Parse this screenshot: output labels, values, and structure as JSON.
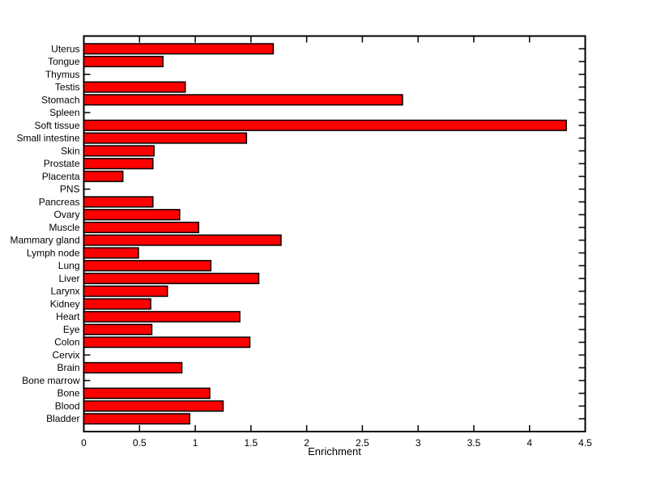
{
  "figure": {
    "background": "#ffffff"
  },
  "chart_data": {
    "type": "bar",
    "orientation": "horizontal",
    "title": "",
    "xlabel": "Enrichment",
    "ylabel": "",
    "xlim": [
      0,
      4.5
    ],
    "xticks": [
      0,
      0.5,
      1,
      1.5,
      2,
      2.5,
      3,
      3.5,
      4,
      4.5
    ],
    "xtick_labels": [
      "0",
      "0.5",
      "1",
      "1.5",
      "2",
      "2.5",
      "3",
      "3.5",
      "4",
      "4.5"
    ],
    "grid": false,
    "legend": "none",
    "category_order": "top_to_bottom",
    "categories": [
      "Uterus",
      "Tongue",
      "Thymus",
      "Testis",
      "Stomach",
      "Spleen",
      "Soft tissue",
      "Small intestine",
      "Skin",
      "Prostate",
      "Placenta",
      "PNS",
      "Pancreas",
      "Ovary",
      "Muscle",
      "Mammary gland",
      "Lymph node",
      "Lung",
      "Liver",
      "Larynx",
      "Kidney",
      "Heart",
      "Eye",
      "Colon",
      "Cervix",
      "Brain",
      "Bone marrow",
      "Bone",
      "Blood",
      "Bladder"
    ],
    "values": [
      1.7,
      0.71,
      0,
      0.91,
      2.86,
      0,
      4.33,
      1.46,
      0.63,
      0.62,
      0.35,
      0,
      0.62,
      0.86,
      1.03,
      1.77,
      0.49,
      1.14,
      1.57,
      0.75,
      0.6,
      1.4,
      0.61,
      1.49,
      0,
      0.88,
      0,
      1.13,
      1.25,
      0.95
    ],
    "bar_width_fraction": 0.8,
    "colors": {
      "bar_fill": "#ff0000",
      "bar_edge": "#000000",
      "axis": "#000000",
      "text": "#000000",
      "plot_background": "#ffffff"
    }
  }
}
